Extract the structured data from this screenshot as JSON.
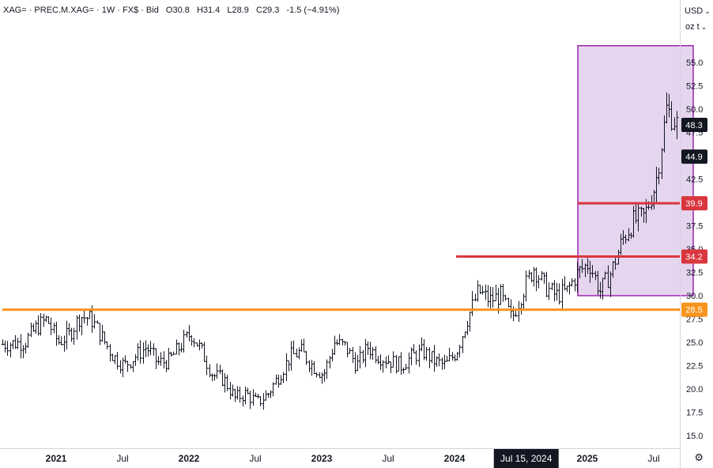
{
  "legend": {
    "symbol": "XAG= · PREC.M.XAG= · 1W · FX$ · Bid",
    "o_label": "O",
    "o": "30.8",
    "h_label": "H",
    "h": "31.4",
    "l_label": "L",
    "l": "28.9",
    "c_label": "C",
    "c": "29.3",
    "change": "-1.5 (−4.91%)"
  },
  "controls": {
    "currency": "USD",
    "unit": "oz t"
  },
  "chart_data": {
    "type": "ohlc",
    "interval": "weekly",
    "color": "#131722",
    "y_axis": {
      "ticks": [
        "15.0",
        "17.5",
        "20.0",
        "22.5",
        "25.0",
        "27.5",
        "30.0",
        "32.5",
        "35.0",
        "37.5",
        "40.0",
        "42.5",
        "45.0",
        "47.5",
        "50.0",
        "52.5",
        "55.0"
      ],
      "ylim": [
        13.5,
        57.5
      ]
    },
    "x_axis": {
      "labels": [
        "2021",
        "Jul",
        "2022",
        "Jul",
        "2023",
        "Jul",
        "2024",
        "Jul 15, 2024",
        "2025",
        "Jul"
      ],
      "highlighted": "Jul 15, 2024"
    },
    "price_labels": [
      {
        "value": "48.3",
        "style": "black"
      },
      {
        "value": "44.9",
        "style": "black"
      },
      {
        "value": "39.9",
        "style": "red"
      },
      {
        "value": "34.2",
        "style": "red"
      },
      {
        "value": "28.5",
        "style": "orange"
      }
    ],
    "horizontal_lines": [
      {
        "price": 28.5,
        "color": "#f7941d",
        "from": "2020-10",
        "to": "axis"
      },
      {
        "price": 34.2,
        "color": "#d9363e",
        "from": "2024-03",
        "to": "axis"
      },
      {
        "price": 39.9,
        "color": "#d9363e",
        "from": "2025-02",
        "to": "axis"
      }
    ],
    "highlight_box": {
      "from": "2025-02",
      "to": "2025-11",
      "price_low": 30.0,
      "price_high": 56.8,
      "fill": "#e6d5ee",
      "stroke": "#9c27b0"
    },
    "anchor_points": [
      [
        "2020-10",
        24.8
      ],
      [
        "2020-12",
        25.0
      ],
      [
        "2021-01",
        26.5
      ],
      [
        "2021-02",
        27.5
      ],
      [
        "2021-03",
        25.0
      ],
      [
        "2021-04",
        25.8
      ],
      [
        "2021-05",
        27.8
      ],
      [
        "2021-06",
        27.5
      ],
      [
        "2021-07",
        25.5
      ],
      [
        "2021-08",
        23.5
      ],
      [
        "2021-09",
        22.5
      ],
      [
        "2021-10",
        23.5
      ],
      [
        "2021-11",
        24.5
      ],
      [
        "2021-12",
        22.8
      ],
      [
        "2022-01",
        23.0
      ],
      [
        "2022-02",
        24.5
      ],
      [
        "2022-03",
        26.0
      ],
      [
        "2022-04",
        24.0
      ],
      [
        "2022-05",
        21.5
      ],
      [
        "2022-06",
        21.0
      ],
      [
        "2022-07",
        19.0
      ],
      [
        "2022-08",
        19.5
      ],
      [
        "2022-09",
        18.5
      ],
      [
        "2022-10",
        19.5
      ],
      [
        "2022-11",
        21.5
      ],
      [
        "2022-12",
        23.5
      ],
      [
        "2023-01",
        24.0
      ],
      [
        "2023-02",
        22.5
      ],
      [
        "2023-03",
        21.5
      ],
      [
        "2023-04",
        25.0
      ],
      [
        "2023-05",
        24.5
      ],
      [
        "2023-06",
        22.5
      ],
      [
        "2023-07",
        24.5
      ],
      [
        "2023-08",
        23.5
      ],
      [
        "2023-09",
        23.0
      ],
      [
        "2023-10",
        22.5
      ],
      [
        "2023-11",
        23.5
      ],
      [
        "2023-12",
        24.0
      ],
      [
        "2024-01",
        23.0
      ],
      [
        "2024-02",
        22.5
      ],
      [
        "2024-03",
        24.0
      ],
      [
        "2024-04",
        27.5
      ],
      [
        "2024-05",
        30.5
      ],
      [
        "2024-06",
        29.5
      ],
      [
        "2024-07",
        30.0
      ],
      [
        "2024-08",
        27.5
      ],
      [
        "2024-09",
        30.5
      ],
      [
        "2024-10",
        33.0
      ],
      [
        "2024-11",
        31.0
      ],
      [
        "2024-12",
        30.0
      ],
      [
        "2025-01",
        30.5
      ],
      [
        "2025-02",
        32.5
      ],
      [
        "2025-03",
        33.5
      ],
      [
        "2025-04",
        30.5
      ],
      [
        "2025-05",
        32.5
      ],
      [
        "2025-06",
        36.0
      ],
      [
        "2025-07",
        38.0
      ],
      [
        "2025-08",
        38.5
      ],
      [
        "2025-09",
        42.0
      ],
      [
        "2025-10",
        50.0
      ],
      [
        "2025-11",
        48.3
      ]
    ]
  }
}
